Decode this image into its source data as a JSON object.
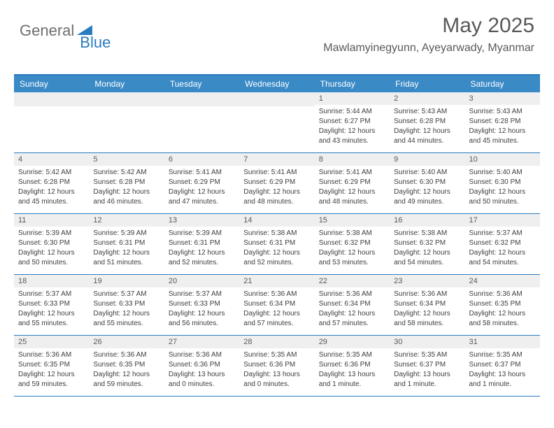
{
  "logo": {
    "text1": "General",
    "text2": "Blue",
    "icon_color": "#2b7bbf"
  },
  "header": {
    "month_title": "May 2025",
    "location": "Mawlamyinegyunn, Ayeyarwady, Myanmar"
  },
  "colors": {
    "accent": "#2b7bbf",
    "header_bg": "#3a8ac6",
    "day_number_bg": "#efefef",
    "text_gray": "#595959",
    "body_text": "#404040"
  },
  "day_names": [
    "Sunday",
    "Monday",
    "Tuesday",
    "Wednesday",
    "Thursday",
    "Friday",
    "Saturday"
  ],
  "weeks": [
    [
      null,
      null,
      null,
      null,
      {
        "n": "1",
        "sr": "5:44 AM",
        "ss": "6:27 PM",
        "dl": "12 hours and 43 minutes."
      },
      {
        "n": "2",
        "sr": "5:43 AM",
        "ss": "6:28 PM",
        "dl": "12 hours and 44 minutes."
      },
      {
        "n": "3",
        "sr": "5:43 AM",
        "ss": "6:28 PM",
        "dl": "12 hours and 45 minutes."
      }
    ],
    [
      {
        "n": "4",
        "sr": "5:42 AM",
        "ss": "6:28 PM",
        "dl": "12 hours and 45 minutes."
      },
      {
        "n": "5",
        "sr": "5:42 AM",
        "ss": "6:28 PM",
        "dl": "12 hours and 46 minutes."
      },
      {
        "n": "6",
        "sr": "5:41 AM",
        "ss": "6:29 PM",
        "dl": "12 hours and 47 minutes."
      },
      {
        "n": "7",
        "sr": "5:41 AM",
        "ss": "6:29 PM",
        "dl": "12 hours and 48 minutes."
      },
      {
        "n": "8",
        "sr": "5:41 AM",
        "ss": "6:29 PM",
        "dl": "12 hours and 48 minutes."
      },
      {
        "n": "9",
        "sr": "5:40 AM",
        "ss": "6:30 PM",
        "dl": "12 hours and 49 minutes."
      },
      {
        "n": "10",
        "sr": "5:40 AM",
        "ss": "6:30 PM",
        "dl": "12 hours and 50 minutes."
      }
    ],
    [
      {
        "n": "11",
        "sr": "5:39 AM",
        "ss": "6:30 PM",
        "dl": "12 hours and 50 minutes."
      },
      {
        "n": "12",
        "sr": "5:39 AM",
        "ss": "6:31 PM",
        "dl": "12 hours and 51 minutes."
      },
      {
        "n": "13",
        "sr": "5:39 AM",
        "ss": "6:31 PM",
        "dl": "12 hours and 52 minutes."
      },
      {
        "n": "14",
        "sr": "5:38 AM",
        "ss": "6:31 PM",
        "dl": "12 hours and 52 minutes."
      },
      {
        "n": "15",
        "sr": "5:38 AM",
        "ss": "6:32 PM",
        "dl": "12 hours and 53 minutes."
      },
      {
        "n": "16",
        "sr": "5:38 AM",
        "ss": "6:32 PM",
        "dl": "12 hours and 54 minutes."
      },
      {
        "n": "17",
        "sr": "5:37 AM",
        "ss": "6:32 PM",
        "dl": "12 hours and 54 minutes."
      }
    ],
    [
      {
        "n": "18",
        "sr": "5:37 AM",
        "ss": "6:33 PM",
        "dl": "12 hours and 55 minutes."
      },
      {
        "n": "19",
        "sr": "5:37 AM",
        "ss": "6:33 PM",
        "dl": "12 hours and 55 minutes."
      },
      {
        "n": "20",
        "sr": "5:37 AM",
        "ss": "6:33 PM",
        "dl": "12 hours and 56 minutes."
      },
      {
        "n": "21",
        "sr": "5:36 AM",
        "ss": "6:34 PM",
        "dl": "12 hours and 57 minutes."
      },
      {
        "n": "22",
        "sr": "5:36 AM",
        "ss": "6:34 PM",
        "dl": "12 hours and 57 minutes."
      },
      {
        "n": "23",
        "sr": "5:36 AM",
        "ss": "6:34 PM",
        "dl": "12 hours and 58 minutes."
      },
      {
        "n": "24",
        "sr": "5:36 AM",
        "ss": "6:35 PM",
        "dl": "12 hours and 58 minutes."
      }
    ],
    [
      {
        "n": "25",
        "sr": "5:36 AM",
        "ss": "6:35 PM",
        "dl": "12 hours and 59 minutes."
      },
      {
        "n": "26",
        "sr": "5:36 AM",
        "ss": "6:35 PM",
        "dl": "12 hours and 59 minutes."
      },
      {
        "n": "27",
        "sr": "5:36 AM",
        "ss": "6:36 PM",
        "dl": "13 hours and 0 minutes."
      },
      {
        "n": "28",
        "sr": "5:35 AM",
        "ss": "6:36 PM",
        "dl": "13 hours and 0 minutes."
      },
      {
        "n": "29",
        "sr": "5:35 AM",
        "ss": "6:36 PM",
        "dl": "13 hours and 1 minute."
      },
      {
        "n": "30",
        "sr": "5:35 AM",
        "ss": "6:37 PM",
        "dl": "13 hours and 1 minute."
      },
      {
        "n": "31",
        "sr": "5:35 AM",
        "ss": "6:37 PM",
        "dl": "13 hours and 1 minute."
      }
    ]
  ],
  "labels": {
    "sunrise": "Sunrise:",
    "sunset": "Sunset:",
    "daylight": "Daylight:"
  }
}
